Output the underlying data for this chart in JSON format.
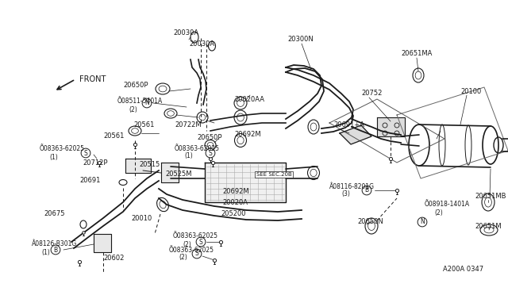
{
  "bg_color": "#ffffff",
  "line_color": "#1a1a1a",
  "fig_width": 6.4,
  "fig_height": 3.72,
  "dpi": 100,
  "xlim": [
    0,
    640
  ],
  "ylim": [
    0,
    372
  ]
}
